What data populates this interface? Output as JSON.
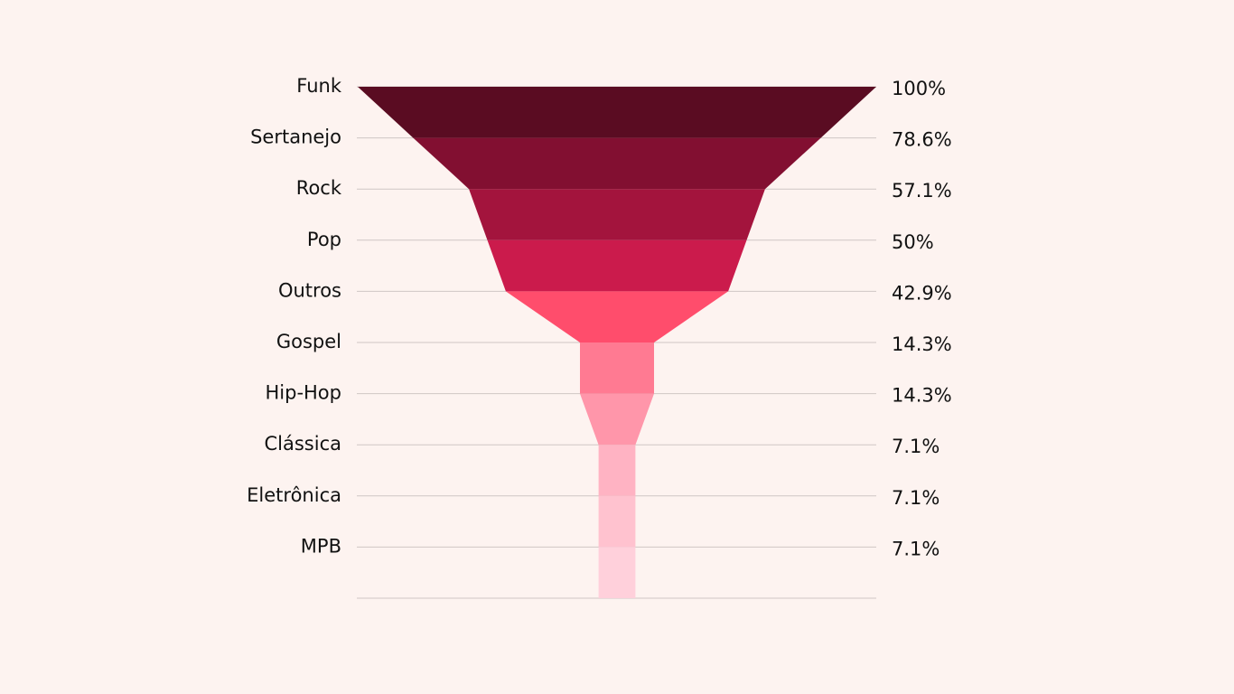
{
  "chart_data": {
    "type": "funnel",
    "title": "",
    "categories": [
      "Funk",
      "Sertanejo",
      "Rock",
      "Pop",
      "Outros",
      "Gospel",
      "Hip-Hop",
      "Clássica",
      "Eletrônica",
      "MPB"
    ],
    "values": [
      100,
      78.6,
      57.1,
      50,
      42.9,
      14.3,
      14.3,
      7.1,
      7.1,
      7.1
    ],
    "value_labels": [
      "100%",
      "78.6%",
      "57.1%",
      "50%",
      "42.9%",
      "14.3%",
      "14.3%",
      "7.1%",
      "7.1%",
      "7.1%"
    ],
    "colors": [
      "#5a0c22",
      "#820f31",
      "#a3143d",
      "#cb1b4c",
      "#ff4d6c",
      "#ff7a92",
      "#ff96aa",
      "#ffb3c3",
      "#ffc2cf",
      "#ffd0db"
    ],
    "legend": "none",
    "grid": "horizontal guide lines"
  }
}
